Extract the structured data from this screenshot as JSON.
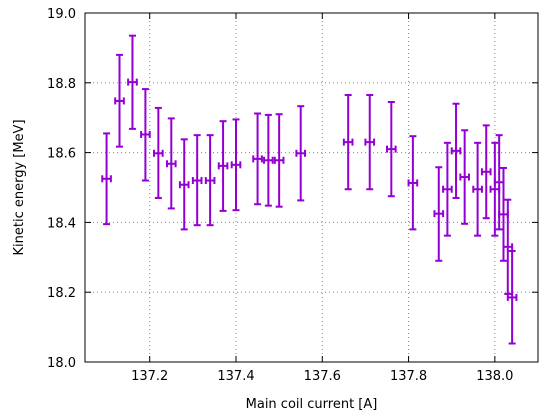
{
  "chart_data": {
    "type": "scatter",
    "title": "",
    "xlabel": "Main coil current [A]",
    "ylabel": "Kinetic energy [MeV]",
    "xlim": [
      137.05,
      138.1
    ],
    "ylim": [
      18.0,
      19.0
    ],
    "x_ticks": [
      137.2,
      137.4,
      137.6,
      137.8,
      138.0
    ],
    "x_tick_labels": [
      "137.2",
      "137.4",
      "137.6",
      "137.8",
      "138.0"
    ],
    "y_ticks": [
      18.0,
      18.2,
      18.4,
      18.6,
      18.8,
      19.0
    ],
    "y_tick_labels": [
      "18.0",
      "18.2",
      "18.4",
      "18.6",
      "18.8",
      "19.0"
    ],
    "grid": true,
    "grid_style": "dotted",
    "marker_color": "#9400D3",
    "series": [
      {
        "points": [
          {
            "x": 137.1,
            "y": 18.525,
            "ylow": 18.395,
            "yhigh": 18.655,
            "xerr": 0.01
          },
          {
            "x": 137.13,
            "y": 18.748,
            "ylow": 18.617,
            "yhigh": 18.88,
            "xerr": 0.01
          },
          {
            "x": 137.16,
            "y": 18.802,
            "ylow": 18.668,
            "yhigh": 18.935,
            "xerr": 0.01
          },
          {
            "x": 137.19,
            "y": 18.652,
            "ylow": 18.52,
            "yhigh": 18.782,
            "xerr": 0.01
          },
          {
            "x": 137.22,
            "y": 18.598,
            "ylow": 18.47,
            "yhigh": 18.728,
            "xerr": 0.01
          },
          {
            "x": 137.25,
            "y": 18.568,
            "ylow": 18.44,
            "yhigh": 18.698,
            "xerr": 0.01
          },
          {
            "x": 137.28,
            "y": 18.508,
            "ylow": 18.38,
            "yhigh": 18.638,
            "xerr": 0.01
          },
          {
            "x": 137.31,
            "y": 18.52,
            "ylow": 18.392,
            "yhigh": 18.65,
            "xerr": 0.01
          },
          {
            "x": 137.34,
            "y": 18.52,
            "ylow": 18.392,
            "yhigh": 18.65,
            "xerr": 0.01
          },
          {
            "x": 137.37,
            "y": 18.562,
            "ylow": 18.433,
            "yhigh": 18.69,
            "xerr": 0.01
          },
          {
            "x": 137.4,
            "y": 18.565,
            "ylow": 18.435,
            "yhigh": 18.695,
            "xerr": 0.01
          },
          {
            "x": 137.45,
            "y": 18.582,
            "ylow": 18.452,
            "yhigh": 18.712,
            "xerr": 0.01
          },
          {
            "x": 137.475,
            "y": 18.578,
            "ylow": 18.448,
            "yhigh": 18.708,
            "xerr": 0.01
          },
          {
            "x": 137.5,
            "y": 18.578,
            "ylow": 18.445,
            "yhigh": 18.71,
            "xerr": 0.01
          },
          {
            "x": 137.55,
            "y": 18.598,
            "ylow": 18.463,
            "yhigh": 18.733,
            "xerr": 0.01
          },
          {
            "x": 137.66,
            "y": 18.63,
            "ylow": 18.495,
            "yhigh": 18.765,
            "xerr": 0.01
          },
          {
            "x": 137.71,
            "y": 18.63,
            "ylow": 18.495,
            "yhigh": 18.765,
            "xerr": 0.01
          },
          {
            "x": 137.76,
            "y": 18.61,
            "ylow": 18.475,
            "yhigh": 18.745,
            "xerr": 0.01
          },
          {
            "x": 137.81,
            "y": 18.513,
            "ylow": 18.38,
            "yhigh": 18.647,
            "xerr": 0.01
          },
          {
            "x": 137.87,
            "y": 18.425,
            "ylow": 18.29,
            "yhigh": 18.558,
            "xerr": 0.01
          },
          {
            "x": 137.89,
            "y": 18.495,
            "ylow": 18.362,
            "yhigh": 18.628,
            "xerr": 0.01
          },
          {
            "x": 137.91,
            "y": 18.605,
            "ylow": 18.47,
            "yhigh": 18.74,
            "xerr": 0.01
          },
          {
            "x": 137.93,
            "y": 18.53,
            "ylow": 18.396,
            "yhigh": 18.664,
            "xerr": 0.01
          },
          {
            "x": 137.96,
            "y": 18.495,
            "ylow": 18.362,
            "yhigh": 18.628,
            "xerr": 0.01
          },
          {
            "x": 137.98,
            "y": 18.545,
            "ylow": 18.412,
            "yhigh": 18.678,
            "xerr": 0.01
          },
          {
            "x": 138.0,
            "y": 18.495,
            "ylow": 18.362,
            "yhigh": 18.628,
            "xerr": 0.01
          },
          {
            "x": 138.01,
            "y": 18.515,
            "ylow": 18.38,
            "yhigh": 18.65,
            "xerr": 0.01
          },
          {
            "x": 138.02,
            "y": 18.423,
            "ylow": 18.29,
            "yhigh": 18.556,
            "xerr": 0.01
          },
          {
            "x": 138.03,
            "y": 18.33,
            "ylow": 18.195,
            "yhigh": 18.465,
            "xerr": 0.01
          },
          {
            "x": 138.04,
            "y": 18.185,
            "ylow": 18.053,
            "yhigh": 18.318,
            "xerr": 0.01
          }
        ]
      }
    ]
  }
}
